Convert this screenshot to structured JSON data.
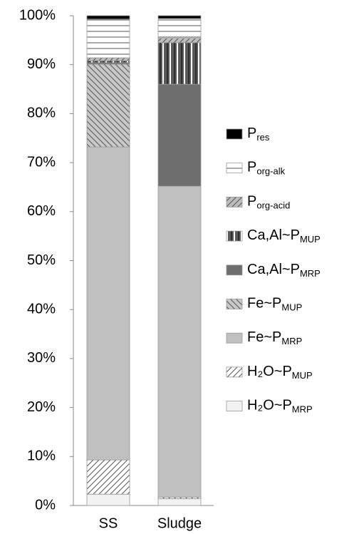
{
  "chart_data": {
    "type": "stacked_bar",
    "categories": [
      "SS",
      "Sludge"
    ],
    "ylim": [
      0,
      100
    ],
    "yticks": [
      {
        "value": 0,
        "label": "0%"
      },
      {
        "value": 10,
        "label": "10%"
      },
      {
        "value": 20,
        "label": "20%"
      },
      {
        "value": 30,
        "label": "30%"
      },
      {
        "value": 40,
        "label": "40%"
      },
      {
        "value": 50,
        "label": "50%"
      },
      {
        "value": 60,
        "label": "60%"
      },
      {
        "value": 70,
        "label": "70%"
      },
      {
        "value": 80,
        "label": "80%"
      },
      {
        "value": 90,
        "label": "90%"
      },
      {
        "value": 100,
        "label": "100%"
      }
    ],
    "grid": false,
    "legend": "right",
    "series": [
      {
        "name": "H₂O~P",
        "subscript": "MRP",
        "color": "#f2f2f2",
        "pattern": "solid",
        "values": [
          2.3,
          1.4
        ]
      },
      {
        "name": "H₂O~P",
        "subscript": "MUP",
        "color": "#ffffff",
        "pattern": "diagonal",
        "values": [
          7.0,
          0.3
        ]
      },
      {
        "name": "Fe~P",
        "subscript": "MRP",
        "color": "#c0c0c0",
        "pattern": "solid",
        "values": [
          63.9,
          63.5
        ]
      },
      {
        "name": "Fe~P",
        "subscript": "MUP",
        "color": "#c8c8c8",
        "pattern": "backdiagonal",
        "values": [
          16.9,
          0
        ]
      },
      {
        "name": "Ca,Al~P",
        "subscript": "MRP",
        "color": "#6e6e6e",
        "pattern": "solid",
        "values": [
          0.3,
          20.8
        ]
      },
      {
        "name": "Ca,Al~P",
        "subscript": "MUP",
        "color": "#5a5a5a",
        "pattern": "vlines",
        "values": [
          0.4,
          8.5
        ]
      },
      {
        "name": "P",
        "subscript": "org-acid",
        "color": "#bdbdbd",
        "pattern": "diagonal",
        "values": [
          0.6,
          0.9
        ]
      },
      {
        "name": "P",
        "subscript": "org-alk",
        "color": "#ffffff",
        "pattern": "hlines",
        "values": [
          7.9,
          4.0
        ]
      },
      {
        "name": "P",
        "subscript": "res",
        "color": "#000000",
        "pattern": "solid",
        "values": [
          0.7,
          0.6
        ]
      }
    ]
  }
}
